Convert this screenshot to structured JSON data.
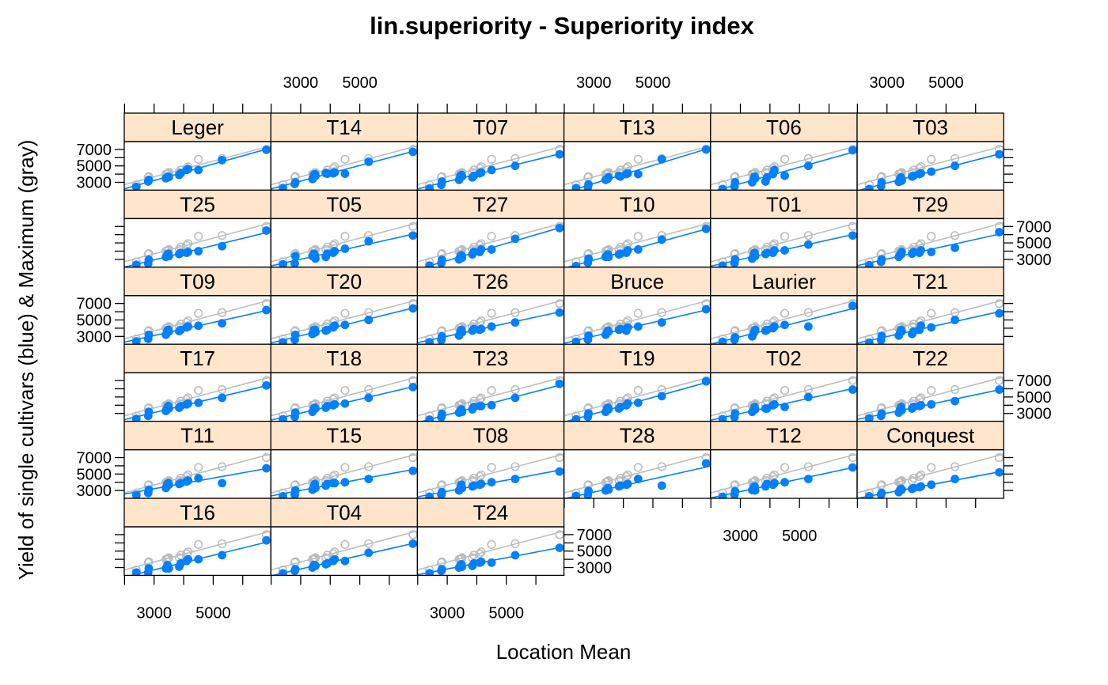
{
  "chart_data": {
    "type": "scatter",
    "title": "lin.superiority - Superiority index",
    "xlabel": "Location Mean",
    "ylabel": "Yield of single cultivars (blue) & Maximum (gray)",
    "xlim": [
      1990,
      6950
    ],
    "ylim": [
      2050,
      7950
    ],
    "x_ticks": [
      3000,
      5000
    ],
    "x_minor_ticks": [
      2000,
      3000,
      4000,
      5000,
      6000
    ],
    "y_ticks": [
      3000,
      5000,
      7000
    ],
    "y_minor_ticks": [
      3000,
      4000,
      5000,
      6000,
      7000
    ],
    "layout": {
      "columns": 6,
      "rows": 6
    },
    "colors": {
      "cultivar": "#0080ff",
      "maximum": "#bdbdbd",
      "strip": "#ffe5cc",
      "frame": "#000000"
    },
    "location_means": [
      2400,
      2800,
      2820,
      3400,
      3450,
      3480,
      3500,
      3850,
      3900,
      4100,
      4150,
      4500,
      5300,
      6800
    ],
    "maximum": [
      2700,
      3600,
      3700,
      4000,
      4000,
      4100,
      4200,
      4200,
      4500,
      4700,
      4900,
      5800,
      5900,
      7000
    ],
    "panels": [
      {
        "name": "Leger",
        "values": [
          2450,
          3100,
          3300,
          3500,
          3600,
          3700,
          3650,
          3900,
          4100,
          4500,
          4600,
          4500,
          5700,
          6950
        ]
      },
      {
        "name": "T14",
        "values": [
          2300,
          2800,
          3000,
          3400,
          3900,
          4000,
          3800,
          4100,
          4050,
          4100,
          4200,
          4050,
          5500,
          6700
        ]
      },
      {
        "name": "T07",
        "values": [
          2250,
          2700,
          3100,
          3300,
          3800,
          3900,
          3700,
          3600,
          3800,
          4100,
          4200,
          4500,
          5000,
          6400
        ]
      },
      {
        "name": "T13",
        "values": [
          2300,
          2400,
          2750,
          3300,
          3400,
          3500,
          3600,
          3800,
          3700,
          4000,
          4100,
          4000,
          5800,
          7000
        ]
      },
      {
        "name": "T06",
        "values": [
          2200,
          2500,
          3000,
          3000,
          3400,
          3700,
          3500,
          3100,
          3600,
          4000,
          4500,
          3800,
          5000,
          6900
        ]
      },
      {
        "name": "T03",
        "values": [
          2200,
          2550,
          3000,
          3050,
          3500,
          3600,
          3200,
          3700,
          3800,
          4000,
          4100,
          4300,
          5000,
          6400
        ]
      },
      {
        "name": "T25",
        "values": [
          2350,
          2500,
          2950,
          3300,
          3550,
          3700,
          3400,
          3650,
          3800,
          3800,
          3900,
          4000,
          4600,
          6500
        ]
      },
      {
        "name": "T05",
        "values": [
          2400,
          2500,
          3400,
          3400,
          3700,
          3500,
          3100,
          3300,
          3700,
          3800,
          4000,
          4300,
          5200,
          5900
        ]
      },
      {
        "name": "T27",
        "values": [
          2250,
          2550,
          2950,
          3000,
          3400,
          3500,
          3200,
          3600,
          3900,
          3900,
          4200,
          4200,
          5500,
          6800
        ]
      },
      {
        "name": "T10",
        "values": [
          2200,
          2600,
          3100,
          3300,
          3500,
          3600,
          3300,
          3600,
          3700,
          3800,
          4100,
          4200,
          5400,
          6700
        ]
      },
      {
        "name": "T01",
        "values": [
          2250,
          2550,
          3000,
          3100,
          3450,
          3800,
          3400,
          3650,
          3800,
          3800,
          4100,
          4100,
          4800,
          5900
        ]
      },
      {
        "name": "T29",
        "values": [
          2300,
          2700,
          3000,
          3300,
          3600,
          3600,
          3900,
          3700,
          3900,
          3800,
          4100,
          3900,
          4400,
          6300
        ]
      },
      {
        "name": "T09",
        "values": [
          2400,
          2700,
          3200,
          3200,
          3700,
          3800,
          3600,
          3650,
          3800,
          4100,
          4200,
          4300,
          4600,
          6200
        ]
      },
      {
        "name": "T20",
        "values": [
          2300,
          2600,
          3200,
          3300,
          3800,
          3800,
          3500,
          3700,
          3800,
          4100,
          4300,
          4400,
          5000,
          6400
        ]
      },
      {
        "name": "T26",
        "values": [
          2300,
          2550,
          3000,
          3100,
          3600,
          3800,
          3500,
          3700,
          3900,
          3800,
          3900,
          4200,
          4700,
          5900
        ]
      },
      {
        "name": "Bruce",
        "values": [
          2350,
          2600,
          3100,
          3200,
          3500,
          3700,
          3600,
          3800,
          3900,
          3700,
          4100,
          4200,
          4700,
          6300
        ]
      },
      {
        "name": "Laurier",
        "values": [
          2350,
          2600,
          2900,
          3000,
          3400,
          3600,
          3800,
          3700,
          3800,
          4000,
          4200,
          4400,
          4200,
          6700
        ]
      },
      {
        "name": "T21",
        "values": [
          2250,
          2550,
          3050,
          3100,
          3450,
          3800,
          3600,
          3300,
          3600,
          3800,
          4300,
          4100,
          5000,
          5800
        ]
      },
      {
        "name": "T17",
        "values": [
          2350,
          2700,
          3200,
          3300,
          3700,
          3900,
          3600,
          3700,
          3900,
          4100,
          4200,
          4300,
          4900,
          6400
        ]
      },
      {
        "name": "T18",
        "values": [
          2300,
          2600,
          3100,
          3200,
          3600,
          3700,
          3600,
          3700,
          3900,
          4000,
          4100,
          4200,
          4900,
          6200
        ]
      },
      {
        "name": "T23",
        "values": [
          2250,
          2550,
          2950,
          3100,
          3400,
          3500,
          3200,
          3500,
          3800,
          3900,
          3900,
          4000,
          4900,
          6600
        ]
      },
      {
        "name": "T19",
        "values": [
          2300,
          2600,
          3000,
          3200,
          3600,
          3700,
          3500,
          3600,
          3800,
          4000,
          4200,
          4300,
          5100,
          6900
        ]
      },
      {
        "name": "T02",
        "values": [
          2300,
          2550,
          3000,
          3200,
          3400,
          3800,
          3500,
          3600,
          3600,
          4000,
          4100,
          3800,
          5000,
          5900
        ]
      },
      {
        "name": "T22",
        "values": [
          2400,
          2700,
          3000,
          3100,
          3500,
          3800,
          3400,
          3600,
          3800,
          3900,
          4000,
          4100,
          4500,
          5900
        ]
      },
      {
        "name": "T11",
        "values": [
          2450,
          2700,
          3100,
          3300,
          3800,
          3900,
          3700,
          3800,
          3900,
          4100,
          4200,
          4500,
          3900,
          5700
        ]
      },
      {
        "name": "T15",
        "values": [
          2300,
          2500,
          3000,
          3100,
          3500,
          3800,
          3300,
          3600,
          3800,
          3900,
          3900,
          4000,
          4400,
          5400
        ]
      },
      {
        "name": "T08",
        "values": [
          2250,
          2500,
          2800,
          3000,
          3300,
          3700,
          3300,
          3500,
          3600,
          3700,
          3800,
          4000,
          4400,
          5300
        ]
      },
      {
        "name": "T28",
        "values": [
          2350,
          2450,
          2950,
          3000,
          3200,
          3300,
          3100,
          3500,
          3600,
          3700,
          3800,
          4400,
          3600,
          6300
        ]
      },
      {
        "name": "T12",
        "values": [
          2250,
          2500,
          2900,
          3050,
          3400,
          3500,
          3000,
          3500,
          3800,
          3700,
          3900,
          4000,
          4400,
          5800
        ]
      },
      {
        "name": "Conquest",
        "values": [
          2300,
          2500,
          2700,
          2800,
          3100,
          3200,
          3100,
          3200,
          3300,
          3400,
          3500,
          3700,
          4400,
          5200
        ]
      },
      {
        "name": "T16",
        "values": [
          2400,
          2400,
          2900,
          2900,
          3300,
          3100,
          2900,
          3100,
          3500,
          3800,
          4000,
          4000,
          4500,
          6300
        ]
      },
      {
        "name": "T04",
        "values": [
          2300,
          2600,
          2800,
          3000,
          3300,
          3300,
          3200,
          3400,
          3500,
          3800,
          4000,
          3800,
          4800,
          5900
        ]
      },
      {
        "name": "T24",
        "values": [
          2300,
          2600,
          2800,
          3000,
          3300,
          3400,
          3100,
          3200,
          3500,
          3600,
          3700,
          3600,
          4500,
          5400
        ]
      }
    ]
  }
}
